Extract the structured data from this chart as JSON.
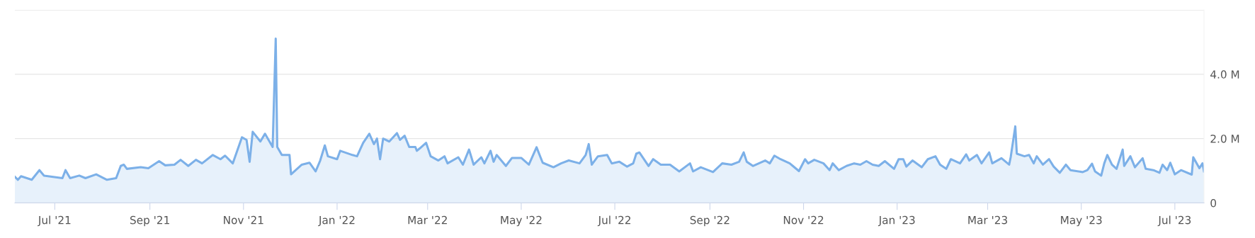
{
  "chart_data": {
    "type": "area",
    "x": [
      "2021-06-05",
      "2021-06-07",
      "2021-06-09",
      "2021-06-16",
      "2021-06-21",
      "2021-06-24",
      "2021-06-30",
      "2021-07-06",
      "2021-07-08",
      "2021-07-11",
      "2021-07-17",
      "2021-07-21",
      "2021-07-28",
      "2021-08-04",
      "2021-08-10",
      "2021-08-13",
      "2021-08-15",
      "2021-08-17",
      "2021-08-26",
      "2021-08-31",
      "2021-09-07",
      "2021-09-11",
      "2021-09-17",
      "2021-09-21",
      "2021-09-26",
      "2021-10-01",
      "2021-10-05",
      "2021-10-12",
      "2021-10-17",
      "2021-10-20",
      "2021-10-25",
      "2021-10-31",
      "2021-11-03",
      "2021-11-05",
      "2021-11-07",
      "2021-11-12",
      "2021-11-15",
      "2021-11-20",
      "2021-11-22",
      "2021-11-23",
      "2021-11-26",
      "2021-12-01",
      "2021-12-02",
      "2021-12-09",
      "2021-12-14",
      "2021-12-18",
      "2021-12-21",
      "2021-12-24",
      "2021-12-26",
      "2022-01-01",
      "2022-01-03",
      "2022-01-11",
      "2022-01-14",
      "2022-01-18",
      "2022-01-22",
      "2022-01-25",
      "2022-01-27",
      "2022-01-29",
      "2022-01-31",
      "2022-02-04",
      "2022-02-09",
      "2022-02-11",
      "2022-02-14",
      "2022-02-17",
      "2022-02-21",
      "2022-02-22",
      "2022-02-24",
      "2022-02-28",
      "2022-03-03",
      "2022-03-08",
      "2022-03-12",
      "2022-03-14",
      "2022-03-21",
      "2022-03-24",
      "2022-03-28",
      "2022-03-31",
      "2022-04-05",
      "2022-04-07",
      "2022-04-11",
      "2022-04-13",
      "2022-04-15",
      "2022-04-21",
      "2022-04-25",
      "2022-05-01",
      "2022-05-06",
      "2022-05-11",
      "2022-05-15",
      "2022-05-22",
      "2022-05-27",
      "2022-06-01",
      "2022-06-08",
      "2022-06-12",
      "2022-06-14",
      "2022-06-16",
      "2022-06-20",
      "2022-06-26",
      "2022-06-29",
      "2022-07-04",
      "2022-07-09",
      "2022-07-13",
      "2022-07-15",
      "2022-07-17",
      "2022-07-23",
      "2022-07-26",
      "2022-07-31",
      "2022-08-06",
      "2022-08-12",
      "2022-08-19",
      "2022-08-21",
      "2022-08-26",
      "2022-09-03",
      "2022-09-09",
      "2022-09-15",
      "2022-09-20",
      "2022-09-23",
      "2022-09-25",
      "2022-09-29",
      "2022-10-07",
      "2022-10-10",
      "2022-10-13",
      "2022-10-17",
      "2022-10-23",
      "2022-10-25",
      "2022-10-29",
      "2022-11-02",
      "2022-11-04",
      "2022-11-08",
      "2022-11-14",
      "2022-11-18",
      "2022-11-20",
      "2022-11-24",
      "2022-11-29",
      "2022-12-04",
      "2022-12-08",
      "2022-12-12",
      "2022-12-16",
      "2022-12-20",
      "2022-12-24",
      "2022-12-30",
      "2023-01-02",
      "2023-01-05",
      "2023-01-07",
      "2023-01-11",
      "2023-01-17",
      "2023-01-21",
      "2023-01-26",
      "2023-01-29",
      "2023-02-02",
      "2023-02-05",
      "2023-02-11",
      "2023-02-15",
      "2023-02-17",
      "2023-02-22",
      "2023-02-25",
      "2023-03-02",
      "2023-03-04",
      "2023-03-10",
      "2023-03-15",
      "2023-03-16",
      "2023-03-19",
      "2023-03-20",
      "2023-03-25",
      "2023-03-28",
      "2023-03-31",
      "2023-04-02",
      "2023-04-06",
      "2023-04-10",
      "2023-04-13",
      "2023-04-17",
      "2023-04-21",
      "2023-04-24",
      "2023-05-02",
      "2023-05-05",
      "2023-05-08",
      "2023-05-10",
      "2023-05-14",
      "2023-05-16",
      "2023-05-18",
      "2023-05-21",
      "2023-05-24",
      "2023-05-28",
      "2023-05-29",
      "2023-06-02",
      "2023-06-05",
      "2023-06-10",
      "2023-06-12",
      "2023-06-17",
      "2023-06-21",
      "2023-06-23",
      "2023-06-26",
      "2023-06-28",
      "2023-07-01",
      "2023-07-05",
      "2023-07-12",
      "2023-07-13",
      "2023-07-17",
      "2023-07-19",
      "2023-07-20"
    ],
    "series": [
      {
        "color": "#7cb0e8",
        "values": [
          810000,
          720000,
          830000,
          720000,
          1020000,
          850000,
          810000,
          770000,
          1020000,
          770000,
          850000,
          770000,
          890000,
          720000,
          770000,
          1150000,
          1190000,
          1060000,
          1110000,
          1080000,
          1300000,
          1170000,
          1190000,
          1340000,
          1150000,
          1340000,
          1230000,
          1490000,
          1360000,
          1470000,
          1230000,
          2040000,
          1960000,
          1280000,
          2210000,
          1910000,
          2150000,
          1740000,
          5110000,
          1740000,
          1490000,
          1490000,
          890000,
          1190000,
          1250000,
          980000,
          1320000,
          1790000,
          1450000,
          1360000,
          1620000,
          1490000,
          1450000,
          1870000,
          2150000,
          1830000,
          2000000,
          1360000,
          2000000,
          1910000,
          2170000,
          1960000,
          2090000,
          1740000,
          1740000,
          1620000,
          1700000,
          1870000,
          1450000,
          1320000,
          1450000,
          1230000,
          1420000,
          1190000,
          1660000,
          1190000,
          1420000,
          1230000,
          1620000,
          1280000,
          1490000,
          1150000,
          1400000,
          1400000,
          1190000,
          1730000,
          1250000,
          1110000,
          1230000,
          1320000,
          1230000,
          1490000,
          1830000,
          1190000,
          1450000,
          1490000,
          1230000,
          1280000,
          1130000,
          1230000,
          1530000,
          1570000,
          1150000,
          1360000,
          1190000,
          1190000,
          980000,
          1230000,
          980000,
          1110000,
          960000,
          1230000,
          1190000,
          1280000,
          1570000,
          1280000,
          1150000,
          1320000,
          1230000,
          1470000,
          1360000,
          1230000,
          1150000,
          990000,
          1360000,
          1230000,
          1340000,
          1230000,
          1020000,
          1230000,
          1020000,
          1150000,
          1230000,
          1190000,
          1300000,
          1190000,
          1150000,
          1300000,
          1060000,
          1360000,
          1360000,
          1130000,
          1320000,
          1110000,
          1360000,
          1450000,
          1190000,
          1060000,
          1360000,
          1230000,
          1510000,
          1320000,
          1490000,
          1230000,
          1570000,
          1230000,
          1390000,
          1190000,
          1420000,
          2380000,
          1530000,
          1450000,
          1490000,
          1230000,
          1450000,
          1190000,
          1360000,
          1130000,
          940000,
          1190000,
          1020000,
          960000,
          1020000,
          1220000,
          980000,
          850000,
          1230000,
          1490000,
          1190000,
          1060000,
          1660000,
          1150000,
          1450000,
          1110000,
          1390000,
          1060000,
          1020000,
          940000,
          1190000,
          1020000,
          1250000,
          890000,
          1020000,
          880000,
          1420000,
          1080000,
          1230000,
          980000
        ]
      }
    ],
    "xlim": [
      "2021-06-05",
      "2023-07-20"
    ],
    "xticks": [
      {
        "value": "2021-07-01",
        "label": "Jul '21"
      },
      {
        "value": "2021-09-01",
        "label": "Sep '21"
      },
      {
        "value": "2021-11-01",
        "label": "Nov '21"
      },
      {
        "value": "2022-01-01",
        "label": "Jan '22"
      },
      {
        "value": "2022-03-01",
        "label": "Mar '22"
      },
      {
        "value": "2022-05-01",
        "label": "May '22"
      },
      {
        "value": "2022-07-01",
        "label": "Jul '22"
      },
      {
        "value": "2022-09-01",
        "label": "Sep '22"
      },
      {
        "value": "2022-11-01",
        "label": "Nov '22"
      },
      {
        "value": "2023-01-01",
        "label": "Jan '23"
      },
      {
        "value": "2023-03-01",
        "label": "Mar '23"
      },
      {
        "value": "2023-05-01",
        "label": "May '23"
      },
      {
        "value": "2023-07-01",
        "label": "Jul '23"
      }
    ],
    "ylim": [
      0,
      6000000
    ],
    "yticks": [
      {
        "value": 0,
        "label": "0"
      },
      {
        "value": 2000000,
        "label": "2.0 M"
      },
      {
        "value": 4000000,
        "label": "4.0 M"
      },
      {
        "value": 6000000,
        "label": null
      }
    ],
    "grid": "y"
  }
}
